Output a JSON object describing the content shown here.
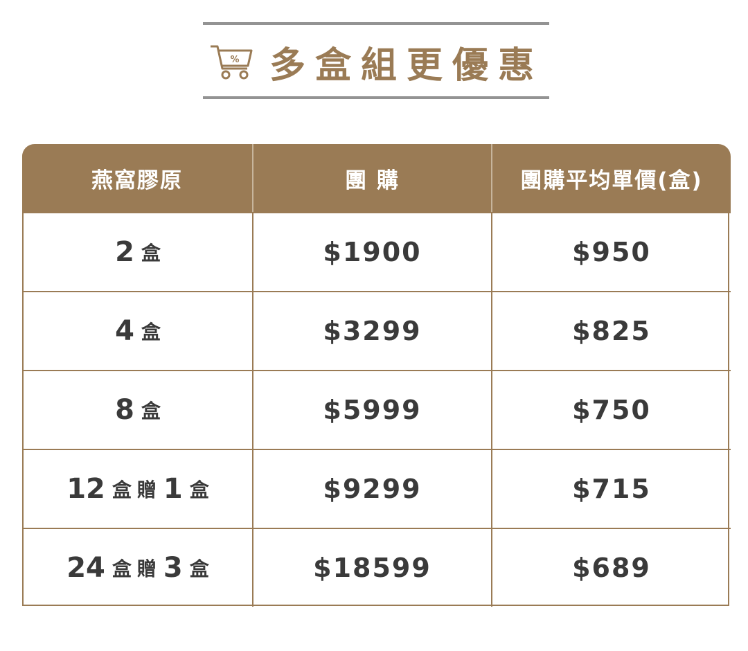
{
  "banner": {
    "title": "多盒組更優惠",
    "icon": "shopping-cart-percent-icon",
    "icon_text": "%",
    "accent_color": "#9a7b55",
    "rule_color": "#939393"
  },
  "table": {
    "headers": [
      "燕窩膠原",
      "團 購",
      "團購平均單價(盒)"
    ],
    "rows": [
      {
        "qty": "2",
        "unit": "盒",
        "bonus_label": "",
        "bonus_qty": "",
        "bonus_unit": "",
        "price": "$1900",
        "unit_price": "$950"
      },
      {
        "qty": "4",
        "unit": "盒",
        "bonus_label": "",
        "bonus_qty": "",
        "bonus_unit": "",
        "price": "$3299",
        "unit_price": "$825"
      },
      {
        "qty": "8",
        "unit": "盒",
        "bonus_label": "",
        "bonus_qty": "",
        "bonus_unit": "",
        "price": "$5999",
        "unit_price": "$750"
      },
      {
        "qty": "12",
        "unit": "盒",
        "bonus_label": "贈",
        "bonus_qty": "1",
        "bonus_unit": "盒",
        "price": "$9299",
        "unit_price": "$715"
      },
      {
        "qty": "24",
        "unit": "盒",
        "bonus_label": "贈",
        "bonus_qty": "3",
        "bonus_unit": "盒",
        "price": "$18599",
        "unit_price": "$689"
      }
    ]
  }
}
